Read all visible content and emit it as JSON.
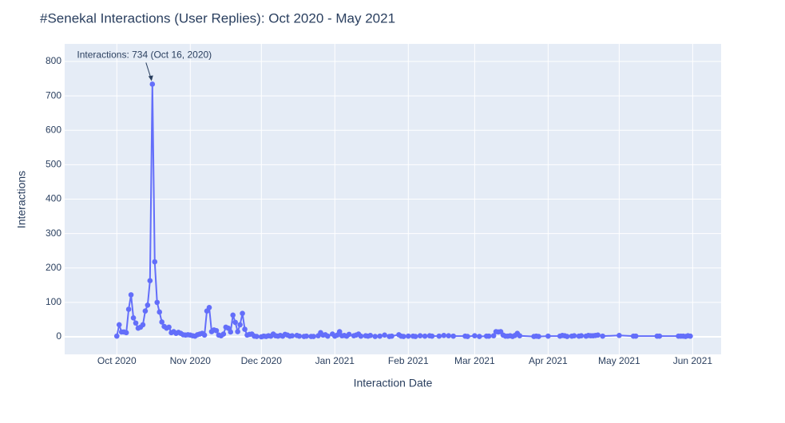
{
  "chart_data": {
    "type": "line",
    "title": "#Senekal Interactions (User Replies): Oct 2020 - May 2021",
    "x_label": "Interaction Date",
    "y_label": "Interactions",
    "annotation": {
      "text": "Interactions: 734 (Oct 16, 2020)",
      "x": "2020-10-16",
      "y": 734
    },
    "color": "#636efa",
    "grid": true,
    "background": "#e5ecf6",
    "xlim": [
      "2020-09-09",
      "2021-06-13"
    ],
    "ylim": [
      -51,
      851
    ],
    "yticks": [
      0,
      100,
      200,
      300,
      400,
      500,
      600,
      700,
      800
    ],
    "xticks": [
      {
        "value": "2020-10-01",
        "label": "Oct 2020"
      },
      {
        "value": "2020-11-01",
        "label": "Nov 2020"
      },
      {
        "value": "2020-12-01",
        "label": "Dec 2020"
      },
      {
        "value": "2021-01-01",
        "label": "Jan 2021"
      },
      {
        "value": "2021-02-01",
        "label": "Feb 2021"
      },
      {
        "value": "2021-03-01",
        "label": "Mar 2021"
      },
      {
        "value": "2021-04-01",
        "label": "Apr 2021"
      },
      {
        "value": "2021-05-01",
        "label": "May 2021"
      },
      {
        "value": "2021-06-01",
        "label": "Jun 2021"
      }
    ],
    "x": [
      "2020-10-01",
      "2020-10-02",
      "2020-10-03",
      "2020-10-04",
      "2020-10-05",
      "2020-10-06",
      "2020-10-07",
      "2020-10-08",
      "2020-10-09",
      "2020-10-10",
      "2020-10-11",
      "2020-10-12",
      "2020-10-13",
      "2020-10-14",
      "2020-10-15",
      "2020-10-16",
      "2020-10-17",
      "2020-10-18",
      "2020-10-19",
      "2020-10-20",
      "2020-10-21",
      "2020-10-22",
      "2020-10-23",
      "2020-10-24",
      "2020-10-25",
      "2020-10-26",
      "2020-10-27",
      "2020-10-28",
      "2020-10-29",
      "2020-10-30",
      "2020-10-31",
      "2020-11-01",
      "2020-11-02",
      "2020-11-03",
      "2020-11-04",
      "2020-11-05",
      "2020-11-06",
      "2020-11-07",
      "2020-11-08",
      "2020-11-09",
      "2020-11-10",
      "2020-11-11",
      "2020-11-12",
      "2020-11-13",
      "2020-11-14",
      "2020-11-15",
      "2020-11-16",
      "2020-11-17",
      "2020-11-18",
      "2020-11-19",
      "2020-11-20",
      "2020-11-21",
      "2020-11-22",
      "2020-11-23",
      "2020-11-24",
      "2020-11-25",
      "2020-11-26",
      "2020-11-27",
      "2020-11-28",
      "2020-11-29",
      "2020-12-01",
      "2020-12-02",
      "2020-12-03",
      "2020-12-04",
      "2020-12-05",
      "2020-12-06",
      "2020-12-07",
      "2020-12-08",
      "2020-12-09",
      "2020-12-10",
      "2020-12-11",
      "2020-12-12",
      "2020-12-13",
      "2020-12-14",
      "2020-12-16",
      "2020-12-17",
      "2020-12-19",
      "2020-12-20",
      "2020-12-22",
      "2020-12-23",
      "2020-12-25",
      "2020-12-26",
      "2020-12-27",
      "2020-12-28",
      "2020-12-29",
      "2020-12-31",
      "2021-01-01",
      "2021-01-02",
      "2021-01-03",
      "2021-01-04",
      "2021-01-05",
      "2021-01-06",
      "2021-01-07",
      "2021-01-09",
      "2021-01-10",
      "2021-01-11",
      "2021-01-12",
      "2021-01-14",
      "2021-01-15",
      "2021-01-16",
      "2021-01-18",
      "2021-01-20",
      "2021-01-22",
      "2021-01-24",
      "2021-01-25",
      "2021-01-28",
      "2021-01-29",
      "2021-01-30",
      "2021-02-01",
      "2021-02-03",
      "2021-02-04",
      "2021-02-06",
      "2021-02-08",
      "2021-02-10",
      "2021-02-11",
      "2021-02-14",
      "2021-02-16",
      "2021-02-18",
      "2021-02-20",
      "2021-02-25",
      "2021-02-26",
      "2021-03-01",
      "2021-03-03",
      "2021-03-06",
      "2021-03-07",
      "2021-03-09",
      "2021-03-10",
      "2021-03-11",
      "2021-03-12",
      "2021-03-13",
      "2021-03-14",
      "2021-03-15",
      "2021-03-16",
      "2021-03-17",
      "2021-03-18",
      "2021-03-19",
      "2021-03-20",
      "2021-03-26",
      "2021-03-27",
      "2021-03-28",
      "2021-04-01",
      "2021-04-06",
      "2021-04-07",
      "2021-04-08",
      "2021-04-09",
      "2021-04-11",
      "2021-04-12",
      "2021-04-14",
      "2021-04-15",
      "2021-04-17",
      "2021-04-18",
      "2021-04-19",
      "2021-04-20",
      "2021-04-21",
      "2021-04-22",
      "2021-04-24",
      "2021-05-01",
      "2021-05-07",
      "2021-05-08",
      "2021-05-17",
      "2021-05-18",
      "2021-05-26",
      "2021-05-27",
      "2021-05-28",
      "2021-05-29",
      "2021-05-30",
      "2021-05-31"
    ],
    "values": [
      2,
      35,
      14,
      14,
      12,
      80,
      122,
      55,
      40,
      25,
      28,
      35,
      75,
      92,
      163,
      734,
      218,
      100,
      72,
      43,
      30,
      25,
      28,
      12,
      15,
      10,
      13,
      10,
      6,
      5,
      6,
      5,
      3,
      2,
      6,
      8,
      10,
      5,
      75,
      85,
      15,
      20,
      18,
      5,
      3,
      8,
      28,
      25,
      14,
      63,
      42,
      15,
      35,
      68,
      22,
      5,
      7,
      8,
      2,
      1,
      0,
      2,
      1,
      3,
      2,
      8,
      3,
      2,
      4,
      2,
      7,
      5,
      2,
      3,
      4,
      2,
      1,
      2,
      1,
      1,
      3,
      12,
      5,
      6,
      2,
      8,
      2,
      5,
      15,
      3,
      4,
      2,
      7,
      3,
      5,
      8,
      2,
      3,
      2,
      4,
      1,
      2,
      5,
      1,
      2,
      6,
      2,
      1,
      2,
      2,
      1,
      3,
      2,
      3,
      2,
      2,
      4,
      3,
      2,
      2,
      1,
      3,
      1,
      2,
      2,
      3,
      15,
      14,
      15,
      5,
      2,
      2,
      3,
      1,
      4,
      10,
      3,
      1,
      2,
      1,
      2,
      2,
      4,
      3,
      1,
      2,
      3,
      2,
      3,
      2,
      4,
      3,
      3,
      4,
      5,
      2,
      4,
      2,
      2,
      2,
      2,
      2,
      2,
      2,
      1,
      3,
      2
    ]
  }
}
